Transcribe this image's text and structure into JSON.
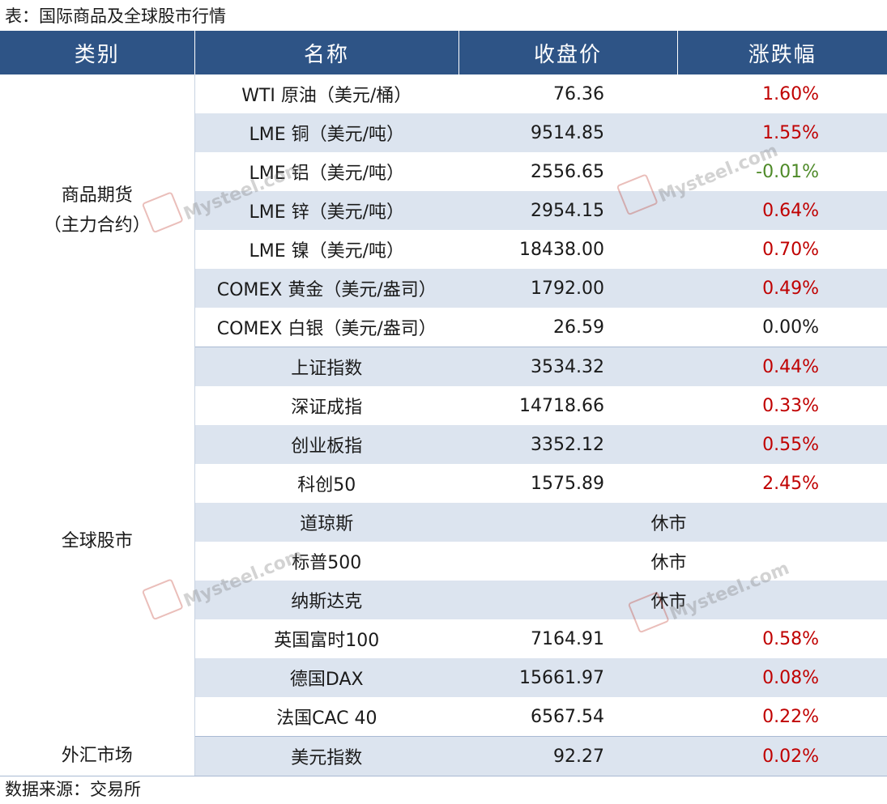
{
  "caption": "表：国际商品及全球股市行情",
  "source": "数据来源：交易所",
  "watermark_text": "Mysteel.com",
  "colors": {
    "header_bg": "#2e5486",
    "band_bg": "#dce4ef",
    "up": "#c00000",
    "down": "#4e8a28"
  },
  "table": {
    "headers": [
      "类别",
      "名称",
      "收盘价",
      "涨跌幅"
    ],
    "groups": [
      {
        "category_line1": "商品期货",
        "category_line2": "（主力合约）",
        "rows": [
          {
            "name": "WTI 原油（美元/桶）",
            "close": "76.36",
            "change": "1.60%",
            "dir": "up"
          },
          {
            "name": "LME 铜（美元/吨）",
            "close": "9514.85",
            "change": "1.55%",
            "dir": "up"
          },
          {
            "name": "LME 铝（美元/吨）",
            "close": "2556.65",
            "change": "-0.01%",
            "dir": "down"
          },
          {
            "name": "LME 锌（美元/吨）",
            "close": "2954.15",
            "change": "0.64%",
            "dir": "up"
          },
          {
            "name": "LME 镍（美元/吨）",
            "close": "18438.00",
            "change": "0.70%",
            "dir": "up"
          },
          {
            "name": "COMEX 黄金（美元/盎司）",
            "close": "1792.00",
            "change": "0.49%",
            "dir": "up"
          },
          {
            "name": "COMEX 白银（美元/盎司）",
            "close": "26.59",
            "change": "0.00%",
            "dir": "flat"
          }
        ]
      },
      {
        "category_line1": "全球股市",
        "category_line2": "",
        "rows": [
          {
            "name": "上证指数",
            "close": "3534.32",
            "change": "0.44%",
            "dir": "up"
          },
          {
            "name": "深证成指",
            "close": "14718.66",
            "change": "0.33%",
            "dir": "up"
          },
          {
            "name": "创业板指",
            "close": "3352.12",
            "change": "0.55%",
            "dir": "up"
          },
          {
            "name": "科创50",
            "close": "1575.89",
            "change": "2.45%",
            "dir": "up"
          },
          {
            "name": "道琼斯",
            "status": "休市"
          },
          {
            "name": "标普500",
            "status": "休市"
          },
          {
            "name": "纳斯达克",
            "status": "休市"
          },
          {
            "name": "英国富时100",
            "close": "7164.91",
            "change": "0.58%",
            "dir": "up"
          },
          {
            "name": "德国DAX",
            "close": "15661.97",
            "change": "0.08%",
            "dir": "up"
          },
          {
            "name": "法国CAC 40",
            "close": "6567.54",
            "change": "0.22%",
            "dir": "up"
          }
        ]
      },
      {
        "category_line1": "外汇市场",
        "category_line2": "",
        "rows": [
          {
            "name": "美元指数",
            "close": "92.27",
            "change": "0.02%",
            "dir": "up"
          }
        ]
      }
    ]
  }
}
